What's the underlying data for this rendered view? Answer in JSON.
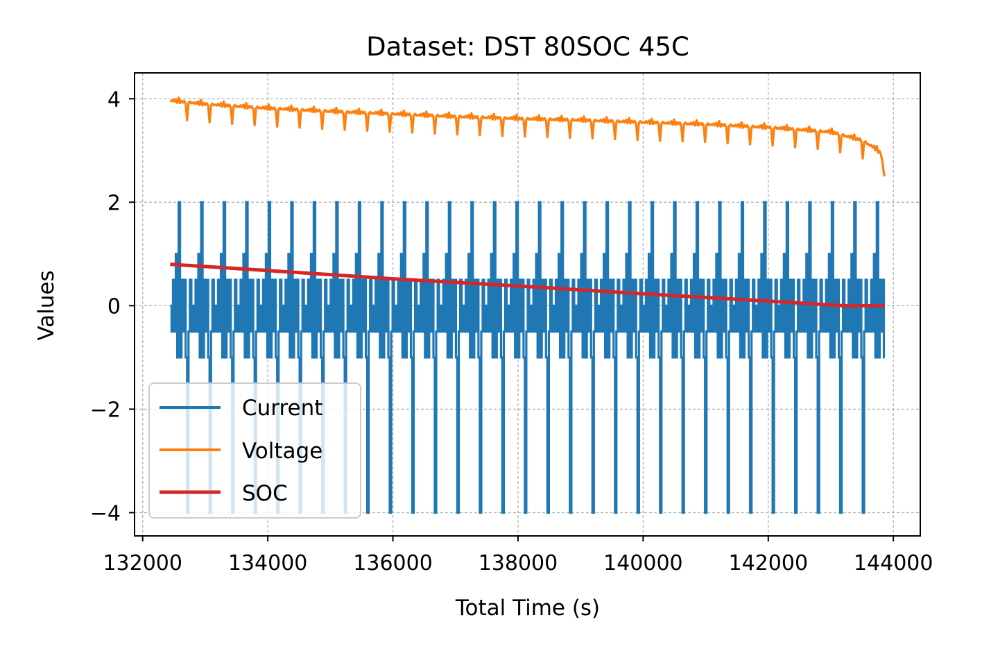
{
  "chart_data": {
    "type": "line",
    "title": "Dataset: DST 80SOC 45C",
    "xlabel": "Total Time (s)",
    "ylabel": "Values",
    "xlim": [
      131870,
      144430
    ],
    "ylim": [
      -4.45,
      4.5
    ],
    "xticks": [
      132000,
      134000,
      136000,
      138000,
      140000,
      142000,
      144000
    ],
    "xtick_labels": [
      "132000",
      "134000",
      "136000",
      "138000",
      "140000",
      "142000",
      "144000"
    ],
    "yticks": [
      4,
      2,
      0,
      -2,
      -4
    ],
    "ytick_labels": [
      "4",
      "2",
      "0",
      "−2",
      "−4"
    ],
    "grid": true,
    "legend_position": "lower-left",
    "colors": {
      "current": "#1f77b4",
      "voltage": "#ff7f0e",
      "soc": "#d62728"
    },
    "series": [
      {
        "name": "Current",
        "color": "#1f77b4",
        "description_range": [
          132440,
          143860
        ],
        "cycle_period_s": 360,
        "cycle_count": 32,
        "values_per_cycle": [
          0,
          -0.5,
          0.5,
          -0.5,
          1,
          -1,
          2,
          -1,
          0.5,
          -0.5,
          0.5,
          -1,
          -4,
          -0.5,
          0.5,
          -0.5
        ],
        "min": -4,
        "max": 2
      },
      {
        "name": "Voltage",
        "color": "#ff7f0e",
        "x": [
          132440,
          133000,
          134000,
          135000,
          136000,
          137000,
          138000,
          139000,
          140000,
          141000,
          142000,
          143000,
          143500,
          143700,
          143800,
          143860
        ],
        "y": [
          3.97,
          3.9,
          3.82,
          3.76,
          3.71,
          3.66,
          3.62,
          3.59,
          3.55,
          3.51,
          3.45,
          3.36,
          3.2,
          3.05,
          2.95,
          2.5
        ],
        "dip_amplitude": 0.35
      },
      {
        "name": "SOC",
        "color": "#d62728",
        "x": [
          132440,
          134000,
          136000,
          138000,
          140000,
          142000,
          143200,
          143860
        ],
        "y": [
          0.8,
          0.68,
          0.52,
          0.38,
          0.23,
          0.09,
          0.0,
          0.0
        ]
      }
    ]
  }
}
